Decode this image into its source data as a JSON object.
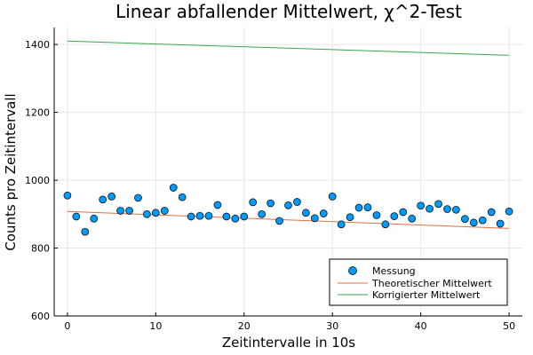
{
  "chart_data": {
    "type": "scatter",
    "title": "Linear abfallender Mittelwert, χ^2-Test",
    "xlabel": "Zeitintervalle in 10s",
    "ylabel": "Counts pro Zeitintervall",
    "xlim": [
      -1.5,
      51.5
    ],
    "ylim": [
      600,
      1450
    ],
    "xticks": [
      0,
      10,
      20,
      30,
      40,
      50
    ],
    "yticks": [
      600,
      800,
      1000,
      1200,
      1400
    ],
    "grid": true,
    "legend_position": "bottom-right",
    "series": [
      {
        "name": "Messung",
        "kind": "scatter",
        "color": "#009AFA",
        "x": [
          0,
          1,
          2,
          3,
          4,
          5,
          6,
          7,
          8,
          9,
          10,
          11,
          12,
          13,
          14,
          15,
          16,
          17,
          18,
          19,
          20,
          21,
          22,
          23,
          24,
          25,
          26,
          27,
          28,
          29,
          30,
          31,
          32,
          33,
          34,
          35,
          36,
          37,
          38,
          39,
          40,
          41,
          42,
          43,
          44,
          45,
          46,
          47,
          48,
          49,
          50
        ],
        "y": [
          955,
          893,
          848,
          887,
          943,
          952,
          910,
          910,
          948,
          900,
          904,
          910,
          978,
          950,
          893,
          895,
          895,
          927,
          893,
          887,
          893,
          935,
          900,
          932,
          880,
          926,
          936,
          904,
          888,
          902,
          952,
          870,
          891,
          919,
          920,
          897,
          870,
          894,
          906,
          887,
          925,
          916,
          930,
          915,
          913,
          886,
          875,
          882,
          906,
          872,
          908
        ]
      },
      {
        "name": "Theoretischer Mittelwert",
        "kind": "line",
        "color": "#E26F46",
        "x": [
          0,
          50
        ],
        "y": [
          908,
          858
        ]
      },
      {
        "name": "Korrigierter Mittelwert",
        "kind": "line",
        "color": "#3DA44D",
        "x": [
          0,
          50
        ],
        "y": [
          1410,
          1368
        ]
      }
    ]
  }
}
